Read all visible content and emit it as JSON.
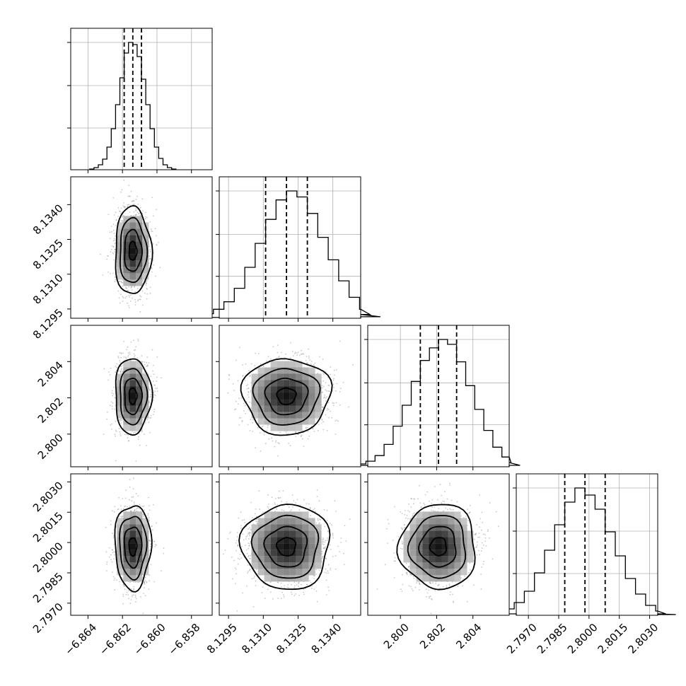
{
  "chart_data": {
    "type": "corner",
    "parameters": [
      {
        "range": [
          -6.865,
          -6.8568
        ],
        "median": -6.8614,
        "q16": -6.8619,
        "q84": -6.8609,
        "sigma": 0.0005,
        "ticks": [
          -6.864,
          -6.862,
          -6.86,
          -6.858
        ],
        "tick_labels": [
          "−6.864",
          "−6.862",
          "−6.860",
          "−6.858"
        ],
        "grid": [
          -6.864,
          -6.862,
          -6.86,
          -6.858
        ]
      },
      {
        "range": [
          8.1291,
          8.1352
        ],
        "median": 8.132,
        "q16": 8.1311,
        "q84": 8.1329,
        "sigma": 0.0009,
        "ticks": [
          8.1295,
          8.131,
          8.1325,
          8.134
        ],
        "tick_labels": [
          "8.1295",
          "8.1310",
          "8.1325",
          "8.1340"
        ],
        "grid": [
          8.1295,
          8.131,
          8.1325,
          8.134
        ]
      },
      {
        "range": [
          2.7982,
          2.806
        ],
        "median": 2.8021,
        "q16": 2.8011,
        "q84": 2.8031,
        "sigma": 0.001,
        "ticks": [
          2.8,
          2.802,
          2.804
        ],
        "tick_labels": [
          "2.800",
          "2.802",
          "2.804"
        ],
        "grid": [
          2.8,
          2.802,
          2.804
        ]
      },
      {
        "range": [
          2.7964,
          2.8034
        ],
        "median": 2.7998,
        "q16": 2.7988,
        "q84": 2.8008,
        "sigma": 0.001,
        "ticks": [
          2.797,
          2.7985,
          2.8,
          2.8015,
          2.803
        ],
        "tick_labels": [
          "2.7970",
          "2.7985",
          "2.8000",
          "2.8015",
          "2.8030"
        ],
        "grid": [
          2.797,
          2.7985,
          2.8,
          2.8015,
          2.803
        ]
      }
    ],
    "histograms": [
      [
        1,
        3,
        7,
        15,
        32,
        58,
        92,
        130,
        165,
        180,
        177,
        160,
        128,
        92,
        58,
        32,
        16,
        7,
        3,
        1
      ],
      [
        1,
        3,
        6,
        12,
        22,
        40,
        68,
        100,
        132,
        158,
        170,
        162,
        140,
        108,
        78,
        50,
        28,
        12,
        5,
        2
      ],
      [
        2,
        4,
        8,
        16,
        32,
        58,
        88,
        122,
        152,
        170,
        182,
        175,
        150,
        116,
        82,
        52,
        28,
        14,
        6,
        2
      ],
      [
        2,
        4,
        9,
        18,
        34,
        60,
        92,
        128,
        160,
        180,
        170,
        150,
        118,
        84,
        52,
        30,
        14,
        6,
        2,
        1
      ]
    ],
    "contour_levels": [
      0.12,
      0.4,
      0.7,
      0.9
    ],
    "histogram_grid": "on",
    "layout": "lower-triangle"
  }
}
